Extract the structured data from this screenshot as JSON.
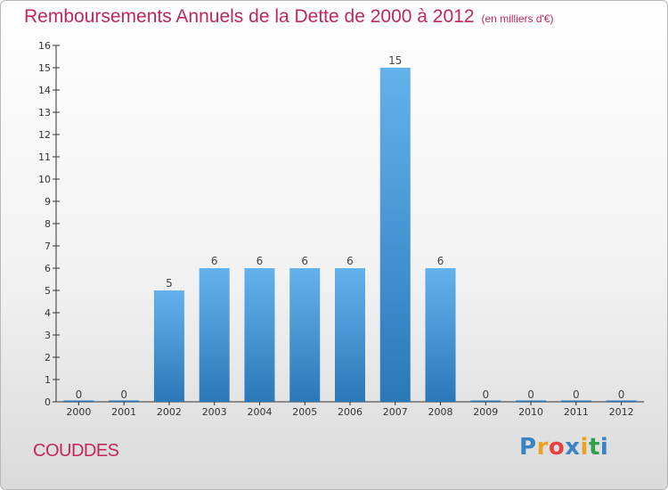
{
  "title": "Remboursements Annuels de la Dette de 2000 à 2012",
  "subtitle": "(en milliers d'€)",
  "commune": "COUDDES",
  "logo": {
    "letters": [
      "P",
      "r",
      "o",
      "x",
      "i",
      "t",
      "i"
    ],
    "colors": [
      "#3a84c4",
      "#f0a020",
      "#e84040",
      "#3a84c4",
      "#f0a020",
      "#2ea050",
      "#3a84c4"
    ]
  },
  "colors": {
    "bar_top": "#64b2ec",
    "bar_bottom": "#2a78b8",
    "title": "#c2265a"
  },
  "chart_data": {
    "type": "bar",
    "categories": [
      "2000",
      "2001",
      "2002",
      "2003",
      "2004",
      "2005",
      "2006",
      "2007",
      "2008",
      "2009",
      "2010",
      "2011",
      "2012"
    ],
    "values": [
      0,
      0,
      5,
      6,
      6,
      6,
      6,
      15,
      6,
      0,
      0,
      0,
      0
    ],
    "title": "Remboursements Annuels de la Dette de 2000 à 2012",
    "subtitle": "(en milliers d'€)",
    "ylim": [
      0,
      16
    ],
    "yticks": [
      0,
      1,
      2,
      3,
      4,
      5,
      6,
      7,
      8,
      9,
      10,
      11,
      12,
      13,
      14,
      15,
      16
    ],
    "grid": false,
    "data_labels": true
  }
}
